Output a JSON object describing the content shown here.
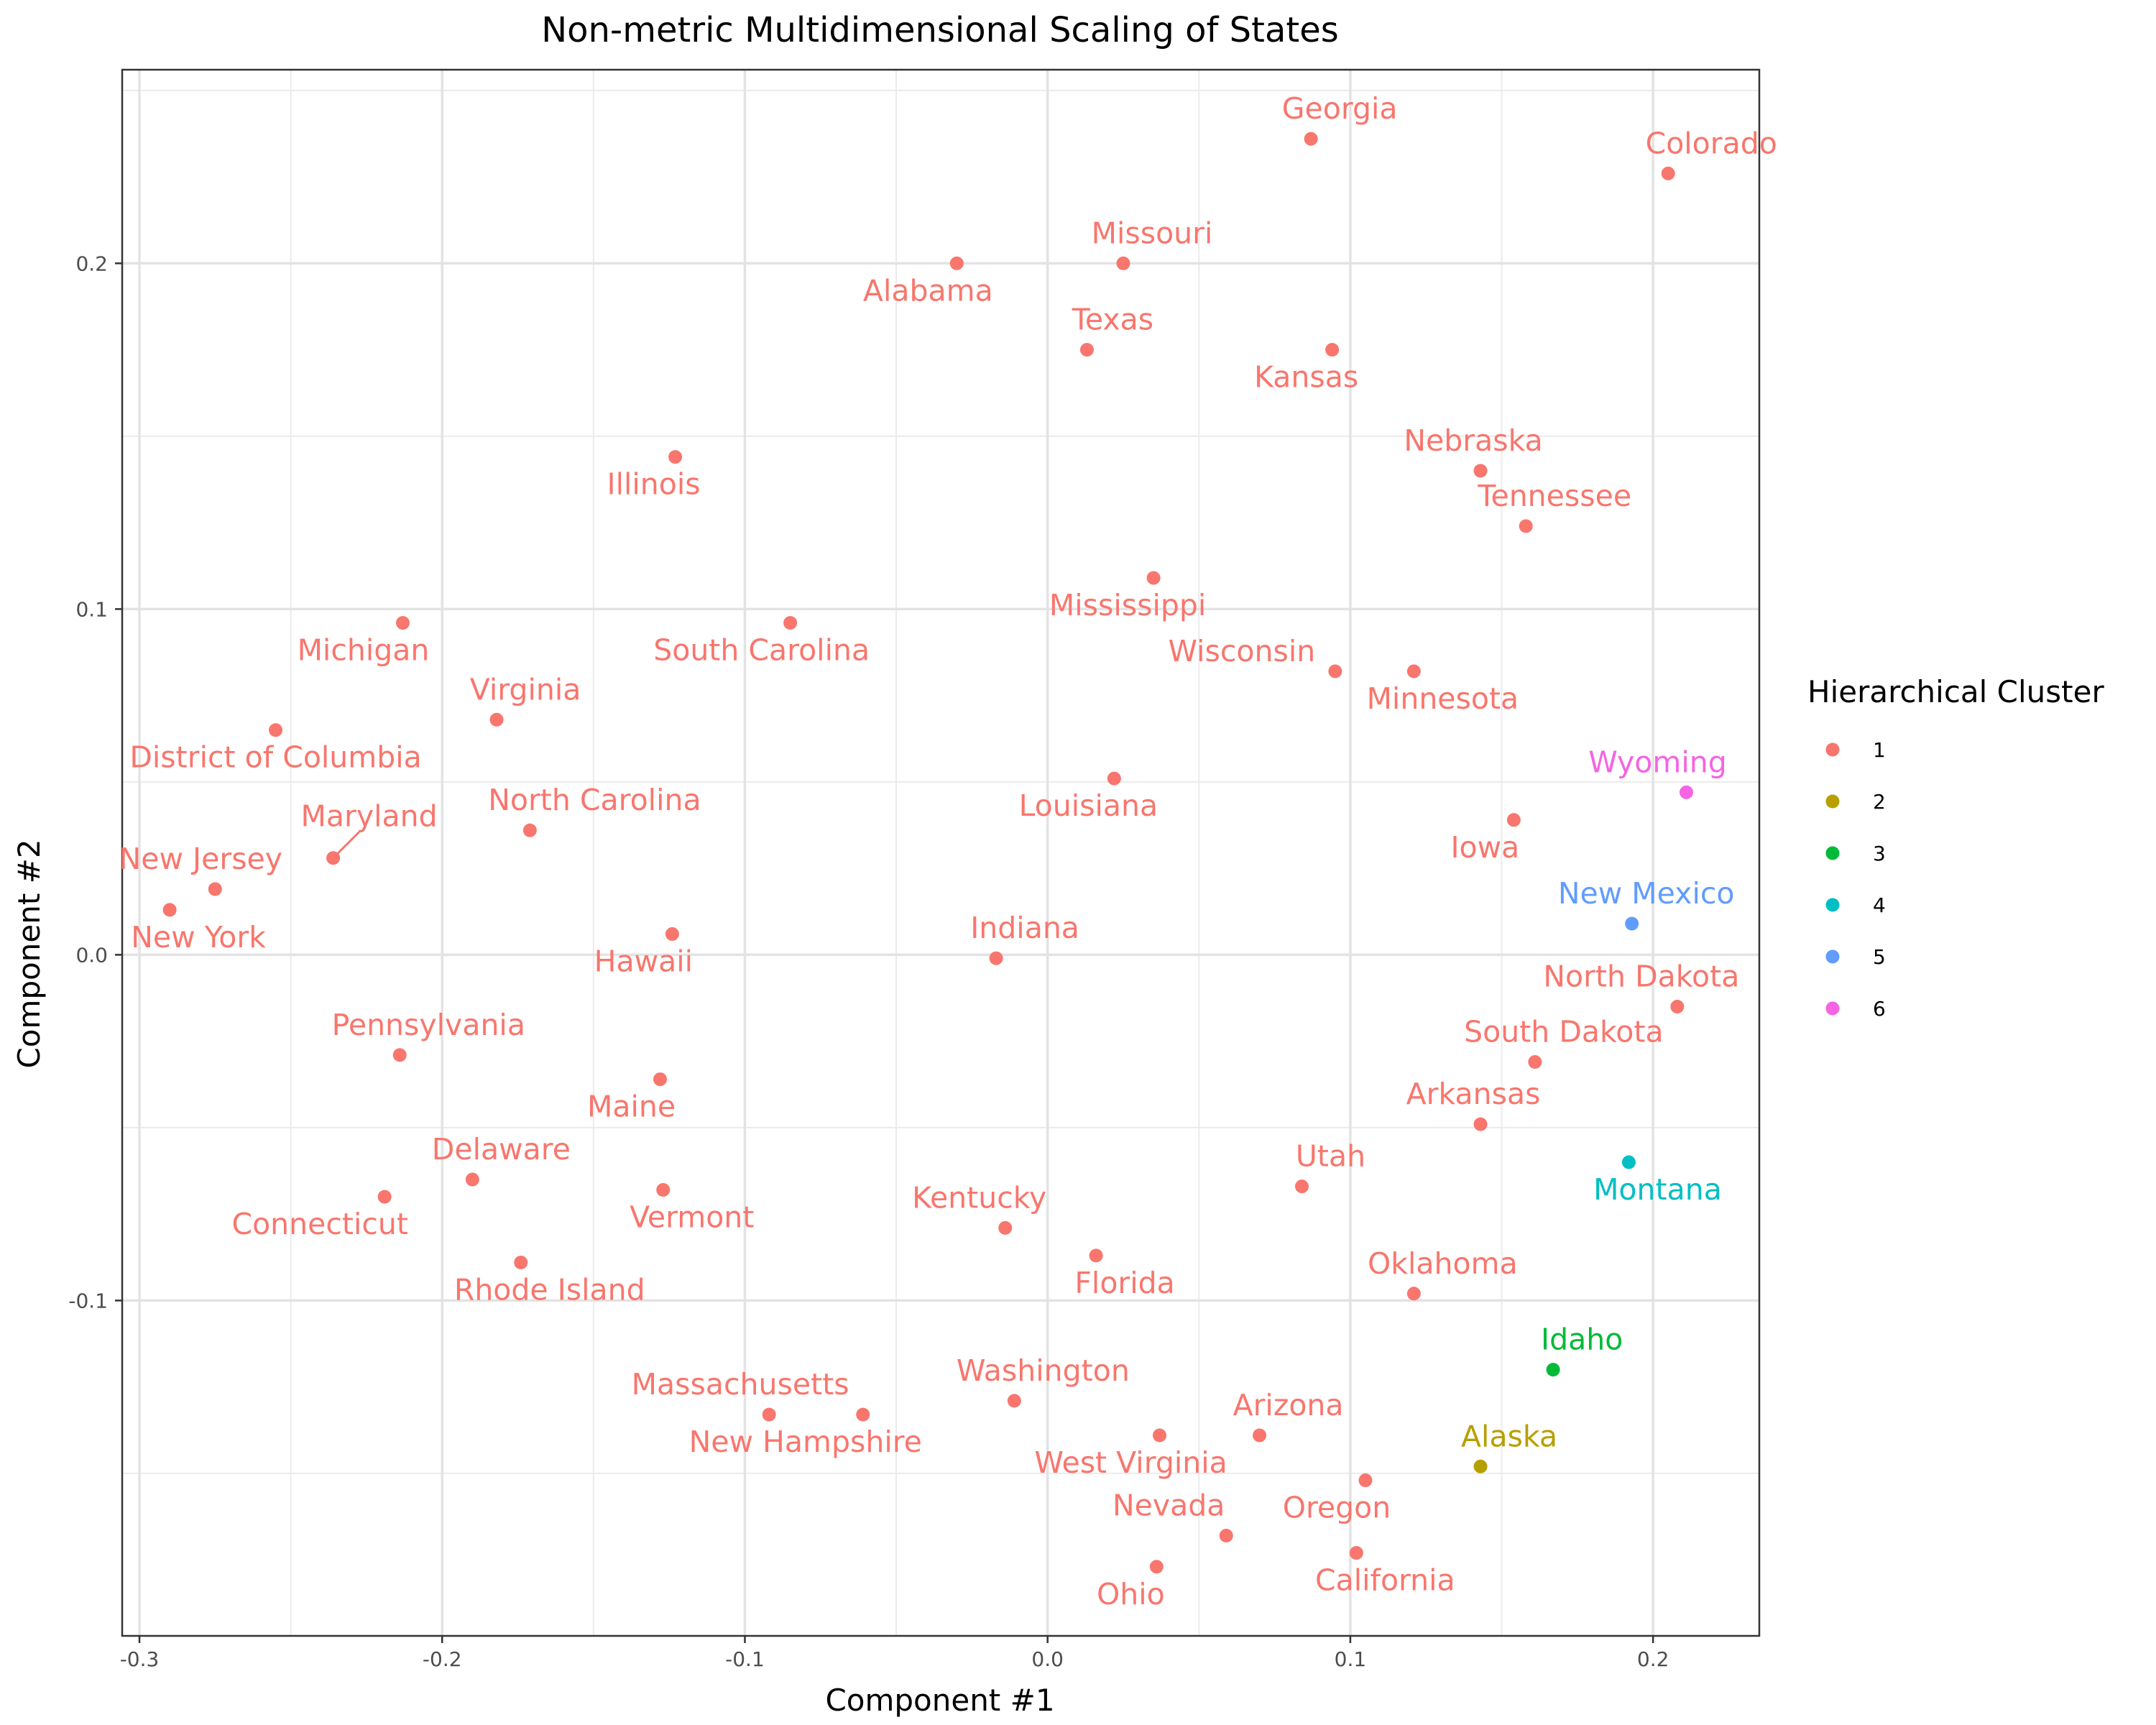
{
  "colors": {
    "1": "#F8766D",
    "2": "#B79F00",
    "3": "#00BA38",
    "4": "#00BFC4",
    "5": "#619CFF",
    "6": "#F564E3"
  },
  "chart_data": {
    "type": "scatter",
    "title": "Non-metric Multidimensional Scaling of States",
    "xlabel": "Component #1",
    "ylabel": "Component #2",
    "xlim": [
      -0.3057,
      0.2351
    ],
    "ylim": [
      -0.197,
      0.256
    ],
    "x_ticks": [
      -0.3,
      -0.2,
      -0.1,
      0.0,
      0.1,
      0.2
    ],
    "x_tick_labels": [
      "-0.3",
      "-0.2",
      "-0.1",
      "0.0",
      "0.1",
      "0.2"
    ],
    "y_ticks": [
      -0.1,
      0.0,
      0.1,
      0.2
    ],
    "y_tick_labels": [
      "-0.1",
      "0.0",
      "0.1",
      "0.2"
    ],
    "grid": true,
    "legend": {
      "title": "Hierarchical Cluster",
      "position": "right",
      "entries": [
        "1",
        "2",
        "3",
        "4",
        "5",
        "6"
      ]
    },
    "points": [
      {
        "name": "Georgia",
        "x": 0.087,
        "y": 0.236,
        "cluster": "1"
      },
      {
        "name": "Colorado",
        "x": 0.205,
        "y": 0.226,
        "cluster": "1"
      },
      {
        "name": "Missouri",
        "x": 0.025,
        "y": 0.2,
        "cluster": "1"
      },
      {
        "name": "Alabama",
        "x": -0.03,
        "y": 0.2,
        "cluster": "1"
      },
      {
        "name": "Texas",
        "x": 0.013,
        "y": 0.175,
        "cluster": "1"
      },
      {
        "name": "Kansas",
        "x": 0.094,
        "y": 0.175,
        "cluster": "1"
      },
      {
        "name": "Illinois",
        "x": -0.123,
        "y": 0.144,
        "cluster": "1"
      },
      {
        "name": "Nebraska",
        "x": 0.143,
        "y": 0.14,
        "cluster": "1"
      },
      {
        "name": "Tennessee",
        "x": 0.158,
        "y": 0.124,
        "cluster": "1"
      },
      {
        "name": "Mississippi",
        "x": 0.035,
        "y": 0.109,
        "cluster": "1"
      },
      {
        "name": "Michigan",
        "x": -0.213,
        "y": 0.096,
        "cluster": "1"
      },
      {
        "name": "South Carolina",
        "x": -0.085,
        "y": 0.096,
        "cluster": "1"
      },
      {
        "name": "Wisconsin",
        "x": 0.095,
        "y": 0.082,
        "cluster": "1"
      },
      {
        "name": "Minnesota",
        "x": 0.121,
        "y": 0.082,
        "cluster": "1"
      },
      {
        "name": "Virginia",
        "x": -0.182,
        "y": 0.068,
        "cluster": "1"
      },
      {
        "name": "District of Columbia",
        "x": -0.255,
        "y": 0.065,
        "cluster": "1"
      },
      {
        "name": "Louisiana",
        "x": 0.022,
        "y": 0.051,
        "cluster": "1"
      },
      {
        "name": "Wyoming",
        "x": 0.211,
        "y": 0.047,
        "cluster": "6"
      },
      {
        "name": "Iowa",
        "x": 0.154,
        "y": 0.039,
        "cluster": "1"
      },
      {
        "name": "North Carolina",
        "x": -0.171,
        "y": 0.036,
        "cluster": "1"
      },
      {
        "name": "Maryland",
        "x": -0.236,
        "y": 0.028,
        "cluster": "1"
      },
      {
        "name": "New Jersey",
        "x": -0.275,
        "y": 0.019,
        "cluster": "1"
      },
      {
        "name": "New York",
        "x": -0.29,
        "y": 0.013,
        "cluster": "1"
      },
      {
        "name": "New Mexico",
        "x": 0.193,
        "y": 0.009,
        "cluster": "5"
      },
      {
        "name": "Hawaii",
        "x": -0.124,
        "y": 0.006,
        "cluster": "1"
      },
      {
        "name": "Indiana",
        "x": -0.017,
        "y": -0.001,
        "cluster": "1"
      },
      {
        "name": "North Dakota",
        "x": 0.208,
        "y": -0.015,
        "cluster": "1"
      },
      {
        "name": "Pennsylvania",
        "x": -0.214,
        "y": -0.029,
        "cluster": "1"
      },
      {
        "name": "South Dakota",
        "x": 0.161,
        "y": -0.031,
        "cluster": "1"
      },
      {
        "name": "Maine",
        "x": -0.128,
        "y": -0.036,
        "cluster": "1"
      },
      {
        "name": "Arkansas",
        "x": 0.143,
        "y": -0.049,
        "cluster": "1"
      },
      {
        "name": "Montana",
        "x": 0.192,
        "y": -0.06,
        "cluster": "4"
      },
      {
        "name": "Delaware",
        "x": -0.19,
        "y": -0.065,
        "cluster": "1"
      },
      {
        "name": "Utah",
        "x": 0.084,
        "y": -0.067,
        "cluster": "1"
      },
      {
        "name": "Vermont",
        "x": -0.127,
        "y": -0.068,
        "cluster": "1"
      },
      {
        "name": "Connecticut",
        "x": -0.219,
        "y": -0.07,
        "cluster": "1"
      },
      {
        "name": "Kentucky",
        "x": -0.014,
        "y": -0.079,
        "cluster": "1"
      },
      {
        "name": "Florida",
        "x": 0.016,
        "y": -0.087,
        "cluster": "1"
      },
      {
        "name": "Rhode Island",
        "x": -0.174,
        "y": -0.089,
        "cluster": "1"
      },
      {
        "name": "Oklahoma",
        "x": 0.121,
        "y": -0.098,
        "cluster": "1"
      },
      {
        "name": "Idaho",
        "x": 0.167,
        "y": -0.12,
        "cluster": "3"
      },
      {
        "name": "Washington",
        "x": -0.011,
        "y": -0.129,
        "cluster": "1"
      },
      {
        "name": "Massachusetts",
        "x": -0.092,
        "y": -0.133,
        "cluster": "1"
      },
      {
        "name": "New Hampshire",
        "x": -0.061,
        "y": -0.133,
        "cluster": "1"
      },
      {
        "name": "Arizona",
        "x": 0.07,
        "y": -0.139,
        "cluster": "1"
      },
      {
        "name": "West Virginia",
        "x": 0.037,
        "y": -0.139,
        "cluster": "1"
      },
      {
        "name": "Alaska",
        "x": 0.143,
        "y": -0.148,
        "cluster": "2"
      },
      {
        "name": "Oregon",
        "x": 0.105,
        "y": -0.152,
        "cluster": "1"
      },
      {
        "name": "Nevada",
        "x": 0.059,
        "y": -0.168,
        "cluster": "1"
      },
      {
        "name": "California",
        "x": 0.102,
        "y": -0.173,
        "cluster": "1"
      },
      {
        "name": "Ohio",
        "x": 0.036,
        "y": -0.177,
        "cluster": "1"
      }
    ]
  }
}
